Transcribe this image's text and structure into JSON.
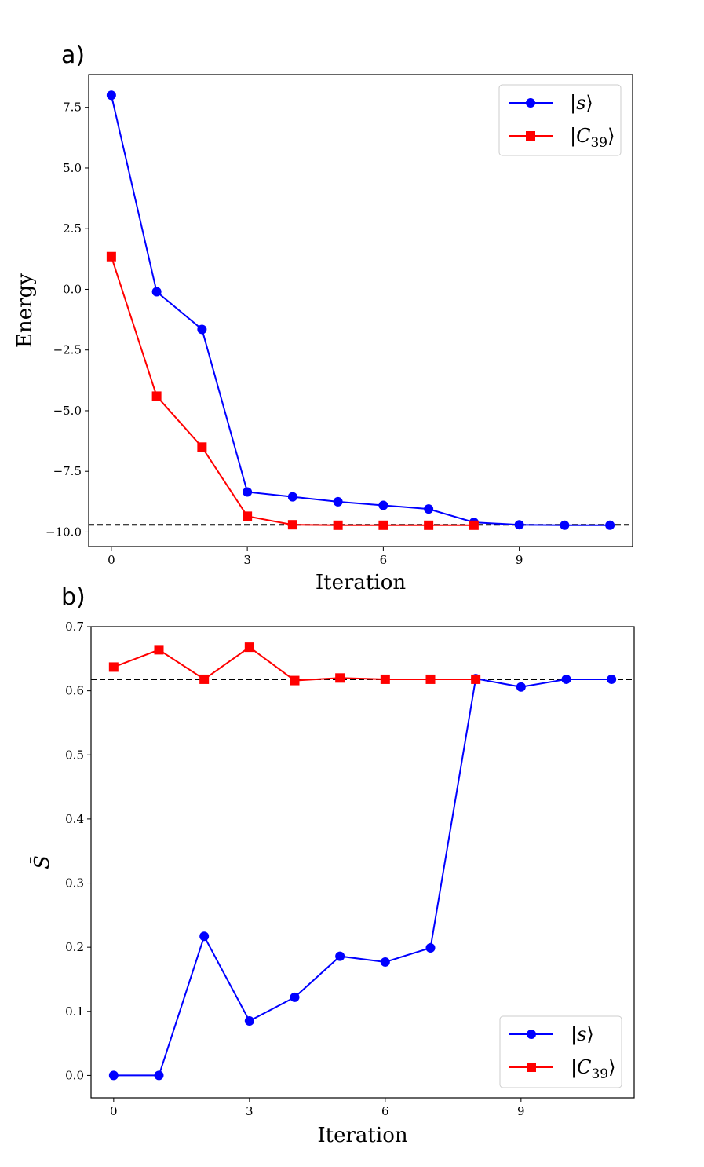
{
  "chart_data": [
    {
      "panel_label": "a)",
      "type": "line",
      "xlabel": "Iteration",
      "ylabel": "Energy",
      "xlim": [
        -0.5,
        11.5
      ],
      "ylim": [
        -10.6,
        8.85
      ],
      "xticks": [
        0,
        3,
        6,
        9
      ],
      "xtick_labels": [
        "0",
        "3",
        "6",
        "9"
      ],
      "yticks": [
        7.5,
        5.0,
        2.5,
        0.0,
        -2.5,
        -5.0,
        -7.5,
        -10.0
      ],
      "ytick_labels": [
        "7.5",
        "5.0",
        "2.5",
        "0.0",
        "−2.5",
        "−5.0",
        "−7.5",
        "−10.0"
      ],
      "reference_line": -9.7,
      "legend_position": "top-right",
      "series": [
        {
          "name": "|s⟩",
          "color": "#0000ff",
          "marker": "circle",
          "x": [
            0,
            1,
            2,
            3,
            4,
            5,
            6,
            7,
            8,
            9,
            10,
            11
          ],
          "values": [
            8.0,
            -0.1,
            -1.65,
            -8.35,
            -8.55,
            -8.75,
            -8.9,
            -9.05,
            -9.6,
            -9.7,
            -9.72,
            -9.72
          ]
        },
        {
          "name": "|C39⟩",
          "color": "#ff0000",
          "marker": "square",
          "x": [
            0,
            1,
            2,
            3,
            4,
            5,
            6,
            7,
            8
          ],
          "values": [
            1.35,
            -4.4,
            -6.5,
            -9.35,
            -9.7,
            -9.72,
            -9.72,
            -9.72,
            -9.72
          ]
        }
      ]
    },
    {
      "panel_label": "b)",
      "type": "line",
      "xlabel": "Iteration",
      "ylabel": "S̄",
      "xlim": [
        -0.5,
        11.5
      ],
      "ylim": [
        -0.035,
        0.7
      ],
      "xticks": [
        0,
        3,
        6,
        9
      ],
      "xtick_labels": [
        "0",
        "3",
        "6",
        "9"
      ],
      "yticks": [
        0.0,
        0.1,
        0.2,
        0.3,
        0.4,
        0.5,
        0.6,
        0.7
      ],
      "ytick_labels": [
        "0.0",
        "0.1",
        "0.2",
        "0.3",
        "0.4",
        "0.5",
        "0.6",
        "0.7"
      ],
      "reference_line": 0.618,
      "legend_position": "bottom-right",
      "series": [
        {
          "name": "|s⟩",
          "color": "#0000ff",
          "marker": "circle",
          "x": [
            0,
            1,
            2,
            3,
            4,
            5,
            6,
            7,
            8,
            9,
            10,
            11
          ],
          "values": [
            0.0,
            0.0,
            0.217,
            0.085,
            0.122,
            0.186,
            0.177,
            0.199,
            0.619,
            0.606,
            0.618,
            0.618
          ]
        },
        {
          "name": "|C39⟩",
          "color": "#ff0000",
          "marker": "square",
          "x": [
            0,
            1,
            2,
            3,
            4,
            5,
            6,
            7,
            8
          ],
          "values": [
            0.637,
            0.664,
            0.618,
            0.668,
            0.616,
            0.62,
            0.618,
            0.618,
            0.618
          ]
        }
      ]
    }
  ]
}
